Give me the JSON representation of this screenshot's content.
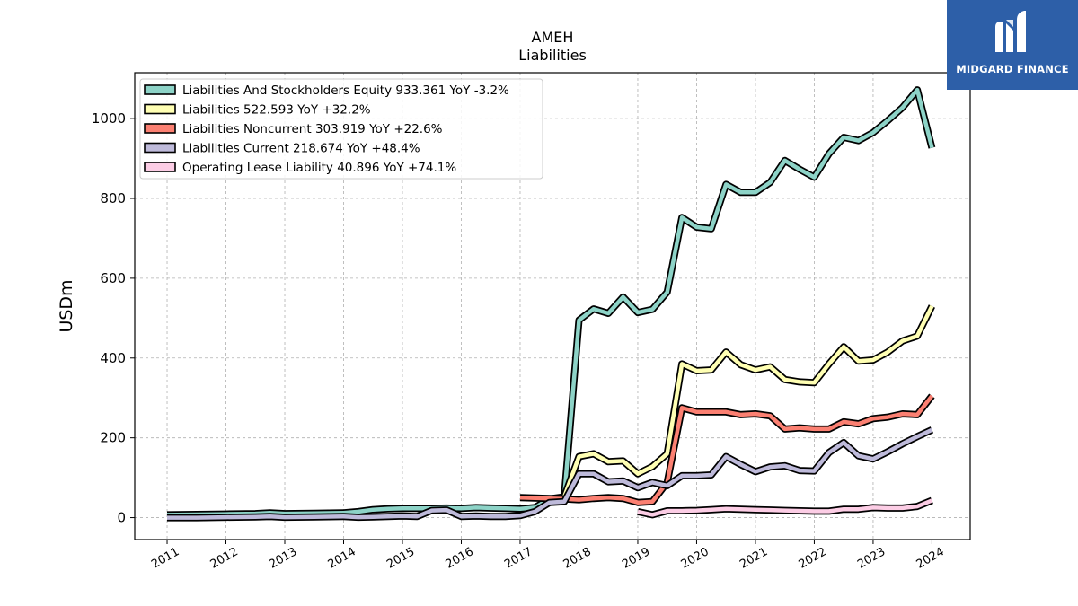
{
  "chart_data": {
    "type": "line",
    "title": "AMEH",
    "subtitle": "Liabilities",
    "xlabel": "",
    "ylabel": "USDm",
    "ylim": [
      -55,
      1115
    ],
    "xlim": [
      2010.45,
      2024.65
    ],
    "yticks": [
      0,
      200,
      400,
      600,
      800,
      1000
    ],
    "xticks": [
      2011,
      2012,
      2013,
      2014,
      2015,
      2016,
      2017,
      2018,
      2019,
      2020,
      2021,
      2022,
      2023,
      2024
    ],
    "xtick_labels": [
      "2011",
      "2012",
      "2013",
      "2014",
      "2015",
      "2016",
      "2017",
      "2018",
      "2019",
      "2020",
      "2021",
      "2022",
      "2023",
      "2024"
    ],
    "grid": true,
    "legend_position": "top-left",
    "series": [
      {
        "name": "Liabilities And Stockholders Equity",
        "legend_label": "Liabilities And Stockholders Equity  933.361 YoY -3.2%",
        "color": "#8dd3c7",
        "points": [
          [
            2011.0,
            7
          ],
          [
            2011.5,
            8
          ],
          [
            2012.0,
            9
          ],
          [
            2012.5,
            10
          ],
          [
            2012.75,
            12
          ],
          [
            2013.0,
            10
          ],
          [
            2013.5,
            11
          ],
          [
            2014.0,
            12
          ],
          [
            2014.25,
            15
          ],
          [
            2014.5,
            20
          ],
          [
            2014.75,
            22
          ],
          [
            2015.0,
            23
          ],
          [
            2015.5,
            23
          ],
          [
            2015.75,
            24
          ],
          [
            2016.0,
            23
          ],
          [
            2016.25,
            25
          ],
          [
            2016.5,
            24
          ],
          [
            2016.75,
            23
          ],
          [
            2017.0,
            22
          ],
          [
            2017.25,
            25
          ],
          [
            2017.5,
            47
          ],
          [
            2017.75,
            52
          ],
          [
            2018.0,
            495
          ],
          [
            2018.25,
            523
          ],
          [
            2018.5,
            512
          ],
          [
            2018.75,
            553
          ],
          [
            2019.0,
            514
          ],
          [
            2019.25,
            522
          ],
          [
            2019.5,
            565
          ],
          [
            2019.75,
            752
          ],
          [
            2020.0,
            728
          ],
          [
            2020.25,
            724
          ],
          [
            2020.5,
            835
          ],
          [
            2020.75,
            815
          ],
          [
            2021.0,
            815
          ],
          [
            2021.25,
            840
          ],
          [
            2021.5,
            895
          ],
          [
            2021.75,
            873
          ],
          [
            2022.0,
            853
          ],
          [
            2022.25,
            912
          ],
          [
            2022.5,
            953
          ],
          [
            2022.75,
            945
          ],
          [
            2023.0,
            965
          ],
          [
            2023.25,
            995
          ],
          [
            2023.5,
            1028
          ],
          [
            2023.75,
            1072
          ],
          [
            2024.0,
            927
          ]
        ]
      },
      {
        "name": "Liabilities",
        "legend_label": "Liabilities  522.593 YoY +32.2%",
        "color": "#ffffb3",
        "points": [
          [
            2017.75,
            52
          ],
          [
            2018.0,
            153
          ],
          [
            2018.25,
            160
          ],
          [
            2018.5,
            140
          ],
          [
            2018.75,
            142
          ],
          [
            2019.0,
            110
          ],
          [
            2019.25,
            128
          ],
          [
            2019.5,
            160
          ],
          [
            2019.75,
            385
          ],
          [
            2020.0,
            368
          ],
          [
            2020.25,
            370
          ],
          [
            2020.5,
            415
          ],
          [
            2020.75,
            383
          ],
          [
            2021.0,
            370
          ],
          [
            2021.25,
            378
          ],
          [
            2021.5,
            346
          ],
          [
            2021.75,
            340
          ],
          [
            2022.0,
            338
          ],
          [
            2022.25,
            385
          ],
          [
            2022.5,
            428
          ],
          [
            2022.75,
            392
          ],
          [
            2023.0,
            395
          ],
          [
            2023.25,
            415
          ],
          [
            2023.5,
            443
          ],
          [
            2023.75,
            455
          ],
          [
            2024.0,
            530
          ]
        ]
      },
      {
        "name": "Liabilities Noncurrent",
        "legend_label": "Liabilities Noncurrent  303.919 YoY +22.6%",
        "color": "#fb8072",
        "points": [
          [
            2017.0,
            50
          ],
          [
            2017.25,
            49
          ],
          [
            2017.5,
            48
          ],
          [
            2017.75,
            47
          ],
          [
            2018.0,
            45
          ],
          [
            2018.25,
            48
          ],
          [
            2018.5,
            50
          ],
          [
            2018.75,
            48
          ],
          [
            2019.0,
            38
          ],
          [
            2019.25,
            40
          ],
          [
            2019.5,
            88
          ],
          [
            2019.75,
            275
          ],
          [
            2020.0,
            265
          ],
          [
            2020.25,
            265
          ],
          [
            2020.5,
            265
          ],
          [
            2020.75,
            258
          ],
          [
            2021.0,
            260
          ],
          [
            2021.25,
            255
          ],
          [
            2021.5,
            222
          ],
          [
            2021.75,
            225
          ],
          [
            2022.0,
            222
          ],
          [
            2022.25,
            222
          ],
          [
            2022.5,
            240
          ],
          [
            2022.75,
            235
          ],
          [
            2023.0,
            248
          ],
          [
            2023.25,
            252
          ],
          [
            2023.5,
            260
          ],
          [
            2023.75,
            258
          ],
          [
            2024.0,
            305
          ]
        ]
      },
      {
        "name": "Liabilities Current",
        "legend_label": "Liabilities Current  218.674 YoY +48.4%",
        "color": "#bebada",
        "points": [
          [
            2011.0,
            0
          ],
          [
            2011.5,
            0
          ],
          [
            2012.0,
            1
          ],
          [
            2012.5,
            2
          ],
          [
            2012.75,
            3
          ],
          [
            2013.0,
            1
          ],
          [
            2013.5,
            2
          ],
          [
            2014.0,
            3
          ],
          [
            2014.25,
            1
          ],
          [
            2014.5,
            2
          ],
          [
            2014.75,
            3
          ],
          [
            2015.0,
            4
          ],
          [
            2015.25,
            3
          ],
          [
            2015.5,
            18
          ],
          [
            2015.75,
            19
          ],
          [
            2016.0,
            3
          ],
          [
            2016.25,
            4
          ],
          [
            2016.5,
            3
          ],
          [
            2016.75,
            3
          ],
          [
            2017.0,
            5
          ],
          [
            2017.25,
            15
          ],
          [
            2017.5,
            38
          ],
          [
            2017.75,
            40
          ],
          [
            2018.0,
            110
          ],
          [
            2018.25,
            110
          ],
          [
            2018.5,
            90
          ],
          [
            2018.75,
            92
          ],
          [
            2019.0,
            75
          ],
          [
            2019.25,
            88
          ],
          [
            2019.5,
            80
          ],
          [
            2019.75,
            105
          ],
          [
            2020.0,
            105
          ],
          [
            2020.25,
            107
          ],
          [
            2020.5,
            153
          ],
          [
            2020.75,
            133
          ],
          [
            2021.0,
            115
          ],
          [
            2021.25,
            127
          ],
          [
            2021.5,
            130
          ],
          [
            2021.75,
            118
          ],
          [
            2022.0,
            117
          ],
          [
            2022.25,
            163
          ],
          [
            2022.5,
            188
          ],
          [
            2022.75,
            155
          ],
          [
            2023.0,
            147
          ],
          [
            2023.25,
            165
          ],
          [
            2023.5,
            185
          ],
          [
            2023.75,
            203
          ],
          [
            2024.0,
            220
          ]
        ]
      },
      {
        "name": "Operating Lease Liability",
        "legend_label": "Operating Lease Liability  40.896 YoY +74.1%",
        "color": "#fccde5",
        "points": [
          [
            2019.0,
            15
          ],
          [
            2019.25,
            7
          ],
          [
            2019.5,
            17
          ],
          [
            2019.75,
            17
          ],
          [
            2020.0,
            18
          ],
          [
            2020.25,
            20
          ],
          [
            2020.5,
            22
          ],
          [
            2020.75,
            21
          ],
          [
            2021.0,
            20
          ],
          [
            2021.25,
            19
          ],
          [
            2021.5,
            18
          ],
          [
            2021.75,
            17
          ],
          [
            2022.0,
            16
          ],
          [
            2022.25,
            16
          ],
          [
            2022.5,
            21
          ],
          [
            2022.75,
            21
          ],
          [
            2023.0,
            25
          ],
          [
            2023.25,
            24
          ],
          [
            2023.5,
            24
          ],
          [
            2023.75,
            28
          ],
          [
            2024.0,
            43
          ]
        ]
      }
    ]
  },
  "logo": {
    "text": "MIDGARD FINANCE",
    "color": "#2d5fa8"
  }
}
